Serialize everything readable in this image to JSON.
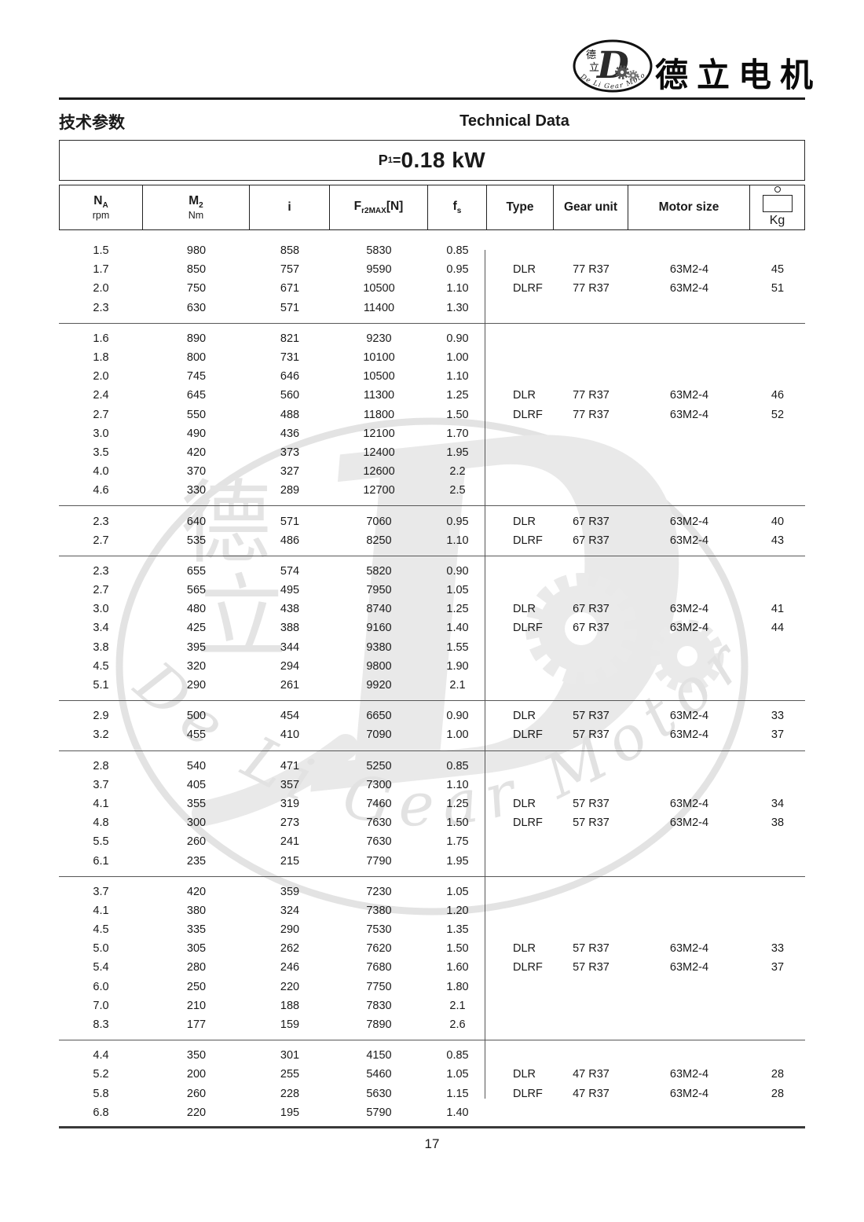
{
  "brand": {
    "name": "德立电机",
    "logo": {
      "cn1": "德",
      "cn2": "立",
      "en": "De Li Gear Motor"
    }
  },
  "page_header": {
    "title_cn": "技术参数",
    "title_en": "Technical Data"
  },
  "power": {
    "prefix_main": "P",
    "prefix_sub": "1",
    "equals": "=",
    "value": "0.18 kW"
  },
  "table": {
    "columns": {
      "na": {
        "main": "N",
        "sub": "A",
        "unit": "rpm"
      },
      "m2": {
        "main": "M",
        "sub": "2",
        "unit": "Nm"
      },
      "i": {
        "main": "i"
      },
      "fr2max": {
        "main": "F",
        "sub": "r2MAX",
        "post": "[N]"
      },
      "fs": {
        "main": "f",
        "sub": "s"
      },
      "type": {
        "label": "Type"
      },
      "gear_unit": {
        "label": "Gear unit"
      },
      "motor_size": {
        "label": "Motor size"
      },
      "kg": {
        "label": "Kg",
        "icon": "weight-icon"
      }
    },
    "groups": [
      {
        "rows": [
          {
            "na": "1.5",
            "m2": "980",
            "i": "858",
            "fr2max": "5830",
            "fs": "0.85"
          },
          {
            "na": "1.7",
            "m2": "850",
            "i": "757",
            "fr2max": "9590",
            "fs": "0.95",
            "type": "DLR",
            "gear_unit": "77 R37",
            "motor_size": "63M2-4",
            "kg": "45"
          },
          {
            "na": "2.0",
            "m2": "750",
            "i": "671",
            "fr2max": "10500",
            "fs": "1.10",
            "type": "DLRF",
            "gear_unit": "77 R37",
            "motor_size": "63M2-4",
            "kg": "51"
          },
          {
            "na": "2.3",
            "m2": "630",
            "i": "571",
            "fr2max": "11400",
            "fs": "1.30"
          }
        ]
      },
      {
        "rows": [
          {
            "na": "1.6",
            "m2": "890",
            "i": "821",
            "fr2max": "9230",
            "fs": "0.90"
          },
          {
            "na": "1.8",
            "m2": "800",
            "i": "731",
            "fr2max": "10100",
            "fs": "1.00"
          },
          {
            "na": "2.0",
            "m2": "745",
            "i": "646",
            "fr2max": "10500",
            "fs": "1.10"
          },
          {
            "na": "2.4",
            "m2": "645",
            "i": "560",
            "fr2max": "11300",
            "fs": "1.25",
            "type": "DLR",
            "gear_unit": "77 R37",
            "motor_size": "63M2-4",
            "kg": "46"
          },
          {
            "na": "2.7",
            "m2": "550",
            "i": "488",
            "fr2max": "11800",
            "fs": "1.50",
            "type": "DLRF",
            "gear_unit": "77 R37",
            "motor_size": "63M2-4",
            "kg": "52"
          },
          {
            "na": "3.0",
            "m2": "490",
            "i": "436",
            "fr2max": "12100",
            "fs": "1.70"
          },
          {
            "na": "3.5",
            "m2": "420",
            "i": "373",
            "fr2max": "12400",
            "fs": "1.95"
          },
          {
            "na": "4.0",
            "m2": "370",
            "i": "327",
            "fr2max": "12600",
            "fs": "2.2"
          },
          {
            "na": "4.6",
            "m2": "330",
            "i": "289",
            "fr2max": "12700",
            "fs": "2.5"
          }
        ]
      },
      {
        "rows": [
          {
            "na": "2.3",
            "m2": "640",
            "i": "571",
            "fr2max": "7060",
            "fs": "0.95",
            "type": "DLR",
            "gear_unit": "67 R37",
            "motor_size": "63M2-4",
            "kg": "40"
          },
          {
            "na": "2.7",
            "m2": "535",
            "i": "486",
            "fr2max": "8250",
            "fs": "1.10",
            "type": "DLRF",
            "gear_unit": "67 R37",
            "motor_size": "63M2-4",
            "kg": "43"
          }
        ]
      },
      {
        "rows": [
          {
            "na": "2.3",
            "m2": "655",
            "i": "574",
            "fr2max": "5820",
            "fs": "0.90"
          },
          {
            "na": "2.7",
            "m2": "565",
            "i": "495",
            "fr2max": "7950",
            "fs": "1.05"
          },
          {
            "na": "3.0",
            "m2": "480",
            "i": "438",
            "fr2max": "8740",
            "fs": "1.25",
            "type": "DLR",
            "gear_unit": "67 R37",
            "motor_size": "63M2-4",
            "kg": "41"
          },
          {
            "na": "3.4",
            "m2": "425",
            "i": "388",
            "fr2max": "9160",
            "fs": "1.40",
            "type": "DLRF",
            "gear_unit": "67 R37",
            "motor_size": "63M2-4",
            "kg": "44"
          },
          {
            "na": "3.8",
            "m2": "395",
            "i": "344",
            "fr2max": "9380",
            "fs": "1.55"
          },
          {
            "na": "4.5",
            "m2": "320",
            "i": "294",
            "fr2max": "9800",
            "fs": "1.90"
          },
          {
            "na": "5.1",
            "m2": "290",
            "i": "261",
            "fr2max": "9920",
            "fs": "2.1"
          }
        ]
      },
      {
        "rows": [
          {
            "na": "2.9",
            "m2": "500",
            "i": "454",
            "fr2max": "6650",
            "fs": "0.90",
            "type": "DLR",
            "gear_unit": "57 R37",
            "motor_size": "63M2-4",
            "kg": "33"
          },
          {
            "na": "3.2",
            "m2": "455",
            "i": "410",
            "fr2max": "7090",
            "fs": "1.00",
            "type": "DLRF",
            "gear_unit": "57 R37",
            "motor_size": "63M2-4",
            "kg": "37"
          }
        ]
      },
      {
        "rows": [
          {
            "na": "2.8",
            "m2": "540",
            "i": "471",
            "fr2max": "5250",
            "fs": "0.85"
          },
          {
            "na": "3.7",
            "m2": "405",
            "i": "357",
            "fr2max": "7300",
            "fs": "1.10"
          },
          {
            "na": "4.1",
            "m2": "355",
            "i": "319",
            "fr2max": "7460",
            "fs": "1.25",
            "type": "DLR",
            "gear_unit": "57 R37",
            "motor_size": "63M2-4",
            "kg": "34"
          },
          {
            "na": "4.8",
            "m2": "300",
            "i": "273",
            "fr2max": "7630",
            "fs": "1.50",
            "type": "DLRF",
            "gear_unit": "57 R37",
            "motor_size": "63M2-4",
            "kg": "38"
          },
          {
            "na": "5.5",
            "m2": "260",
            "i": "241",
            "fr2max": "7630",
            "fs": "1.75"
          },
          {
            "na": "6.1",
            "m2": "235",
            "i": "215",
            "fr2max": "7790",
            "fs": "1.95"
          }
        ]
      },
      {
        "rows": [
          {
            "na": "3.7",
            "m2": "420",
            "i": "359",
            "fr2max": "7230",
            "fs": "1.05"
          },
          {
            "na": "4.1",
            "m2": "380",
            "i": "324",
            "fr2max": "7380",
            "fs": "1.20"
          },
          {
            "na": "4.5",
            "m2": "335",
            "i": "290",
            "fr2max": "7530",
            "fs": "1.35"
          },
          {
            "na": "5.0",
            "m2": "305",
            "i": "262",
            "fr2max": "7620",
            "fs": "1.50",
            "type": "DLR",
            "gear_unit": "57 R37",
            "motor_size": "63M2-4",
            "kg": "33"
          },
          {
            "na": "5.4",
            "m2": "280",
            "i": "246",
            "fr2max": "7680",
            "fs": "1.60",
            "type": "DLRF",
            "gear_unit": "57 R37",
            "motor_size": "63M2-4",
            "kg": "37"
          },
          {
            "na": "6.0",
            "m2": "250",
            "i": "220",
            "fr2max": "7750",
            "fs": "1.80"
          },
          {
            "na": "7.0",
            "m2": "210",
            "i": "188",
            "fr2max": "7830",
            "fs": "2.1"
          },
          {
            "na": "8.3",
            "m2": "177",
            "i": "159",
            "fr2max": "7890",
            "fs": "2.6"
          }
        ]
      },
      {
        "rows": [
          {
            "na": "4.4",
            "m2": "350",
            "i": "301",
            "fr2max": "4150",
            "fs": "0.85"
          },
          {
            "na": "5.2",
            "m2": "200",
            "i": "255",
            "fr2max": "5460",
            "fs": "1.05",
            "type": "DLR",
            "gear_unit": "47 R37",
            "motor_size": "63M2-4",
            "kg": "28"
          },
          {
            "na": "5.8",
            "m2": "260",
            "i": "228",
            "fr2max": "5630",
            "fs": "1.15",
            "type": "DLRF",
            "gear_unit": "47 R37",
            "motor_size": "63M2-4",
            "kg": "28"
          },
          {
            "na": "6.8",
            "m2": "220",
            "i": "195",
            "fr2max": "5790",
            "fs": "1.40"
          }
        ]
      }
    ]
  },
  "watermark": {
    "cn1": "德",
    "cn2": "立",
    "en": "De Li Gear Motor"
  },
  "footer": {
    "page_number": "17"
  }
}
